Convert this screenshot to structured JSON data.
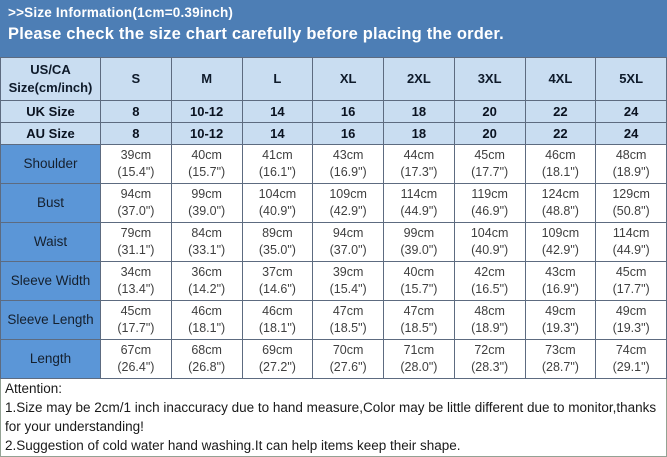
{
  "banner": {
    "title": ">>Size Information(1cm=0.39inch)",
    "subtitle": "Please check the size chart carefully before placing the order."
  },
  "colors": {
    "banner_bg": "#4d7eb5",
    "banner_text": "#ffffff",
    "header_cell_bg": "#c9ddf1",
    "label_cell_bg": "#5b96d7",
    "data_cell_bg": "#ffffff",
    "grid_border": "#5d6b80",
    "header_text": "#0e1a2a",
    "data_text": "#3f3f3f"
  },
  "chart_data": {
    "type": "table",
    "title": ">>Size Information(1cm=0.39inch)",
    "columns": [
      "US/CA\nSize(cm/inch)",
      "S",
      "M",
      "L",
      "XL",
      "2XL",
      "3XL",
      "4XL",
      "5XL"
    ],
    "rows": [
      {
        "kind": "size",
        "label": "UK Size",
        "cells": [
          "8",
          "10-12",
          "14",
          "16",
          "18",
          "20",
          "22",
          "24"
        ]
      },
      {
        "kind": "size",
        "label": "AU Size",
        "cells": [
          "8",
          "10-12",
          "14",
          "16",
          "18",
          "20",
          "22",
          "24"
        ]
      },
      {
        "kind": "measure",
        "label": "Shoulder",
        "cells": [
          "39cm\n(15.4\")",
          "40cm\n(15.7\")",
          "41cm\n(16.1\")",
          "43cm\n(16.9\")",
          "44cm\n(17.3\")",
          "45cm\n(17.7\")",
          "46cm\n(18.1\")",
          "48cm\n(18.9\")"
        ]
      },
      {
        "kind": "measure",
        "label": "Bust",
        "cells": [
          "94cm\n(37.0\")",
          "99cm\n(39.0\")",
          "104cm\n(40.9\")",
          "109cm\n(42.9\")",
          "114cm\n(44.9\")",
          "119cm\n(46.9\")",
          "124cm\n(48.8\")",
          "129cm\n(50.8\")"
        ]
      },
      {
        "kind": "measure",
        "label": "Waist",
        "cells": [
          "79cm\n(31.1\")",
          "84cm\n(33.1\")",
          "89cm\n(35.0\")",
          "94cm\n(37.0\")",
          "99cm\n(39.0\")",
          "104cm\n(40.9\")",
          "109cm\n(42.9\")",
          "114cm\n(44.9\")"
        ]
      },
      {
        "kind": "measure",
        "label": "Sleeve Width",
        "cells": [
          "34cm\n(13.4\")",
          "36cm\n(14.2\")",
          "37cm\n(14.6\")",
          "39cm\n(15.4\")",
          "40cm\n(15.7\")",
          "42cm\n(16.5\")",
          "43cm\n(16.9\")",
          "45cm\n(17.7\")"
        ]
      },
      {
        "kind": "measure",
        "label": "Sleeve Length",
        "cells": [
          "45cm\n(17.7\")",
          "46cm\n(18.1\")",
          "46cm\n(18.1\")",
          "47cm\n(18.5\")",
          "47cm\n(18.5\")",
          "48cm\n(18.9\")",
          "49cm\n(19.3\")",
          "49cm\n(19.3\")"
        ]
      },
      {
        "kind": "measure",
        "label": "Length",
        "cells": [
          "67cm\n(26.4\")",
          "68cm\n(26.8\")",
          "69cm\n(27.2\")",
          "70cm\n(27.6\")",
          "71cm\n(28.0\")",
          "72cm\n(28.3\")",
          "73cm\n(28.7\")",
          "74cm\n(29.1\")"
        ]
      }
    ]
  },
  "attention": {
    "heading": "Attention:",
    "lines": [
      "1.Size may be 2cm/1 inch inaccuracy due to hand measure,Color may be little different due to monitor,thanks for your understanding!",
      "2.Suggestion of cold water hand washing.It can help items keep their shape."
    ]
  }
}
